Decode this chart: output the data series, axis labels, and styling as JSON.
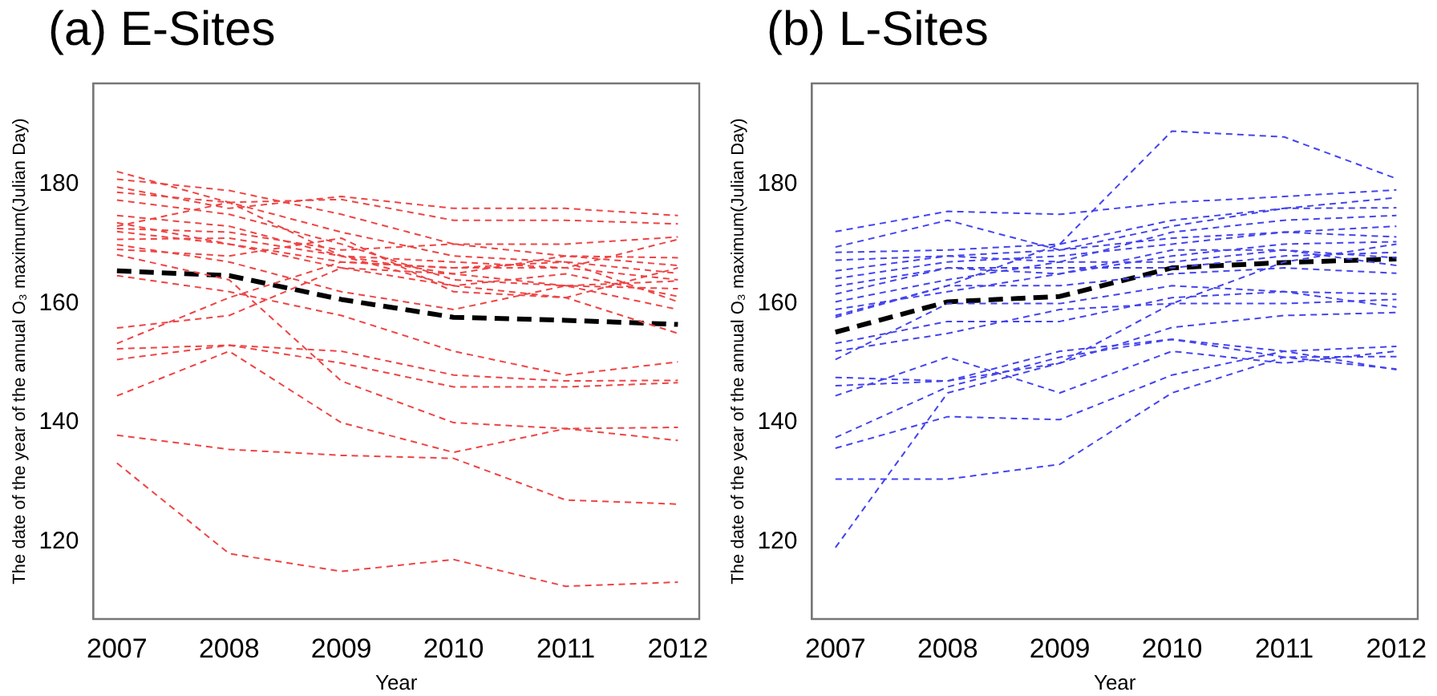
{
  "chart_data": [
    {
      "type": "line",
      "title": "(a) E-Sites",
      "xlabel": "Year",
      "ylabel": "The date of the year of the annual O₃ maximum(Julian Day)",
      "x": [
        2007,
        2008,
        2009,
        2010,
        2011,
        2012
      ],
      "xlim": [
        2006.79,
        2012.19
      ],
      "xticks": [
        2007,
        2008,
        2009,
        2010,
        2011,
        2012
      ],
      "ylim": [
        107,
        197
      ],
      "yticks": [
        120,
        140,
        160,
        180
      ],
      "grid": false,
      "legend": false,
      "marker": "none",
      "line_style": "dashed",
      "series": [
        {
          "color": "#ee4444",
          "values": [
            182.2,
            177,
            172,
            168,
            167,
            165.1
          ]
        },
        {
          "color": "#ee4444",
          "values": [
            180.9,
            179,
            175,
            170,
            168,
            166.4
          ]
        },
        {
          "color": "#ee4444",
          "values": [
            179.6,
            176,
            178,
            176,
            176,
            174.8
          ]
        },
        {
          "color": "#ee4444",
          "values": [
            178.7,
            177,
            177.5,
            174,
            174,
            173.4
          ]
        },
        {
          "color": "#ee4444",
          "values": [
            177.4,
            175,
            170,
            164,
            163,
            163.8
          ]
        },
        {
          "color": "#ee4444",
          "values": [
            174.8,
            173,
            168,
            167,
            166,
            170.8
          ]
        },
        {
          "color": "#ee4444",
          "values": [
            173.6,
            170,
            166,
            165,
            163,
            162.5
          ]
        },
        {
          "color": "#ee4444",
          "values": [
            173,
            177,
            168,
            165,
            168,
            167.7
          ]
        },
        {
          "color": "#ee4444",
          "values": [
            172.6,
            172,
            169,
            170,
            170,
            171.2
          ]
        },
        {
          "color": "#ee4444",
          "values": [
            172.1,
            170,
            167,
            166,
            167,
            160.3
          ]
        },
        {
          "color": "#ee4444",
          "values": [
            170.8,
            171,
            168,
            163,
            165,
            161.2
          ]
        },
        {
          "color": "#ee4444",
          "values": [
            169.9,
            167,
            162,
            159,
            163,
            159
          ]
        },
        {
          "color": "#ee4444",
          "values": [
            169.1,
            168,
            171,
            162,
            161,
            155
          ]
        },
        {
          "color": "#ee4444",
          "values": [
            168.2,
            164,
            147,
            140,
            139,
            139.2
          ]
        },
        {
          "color": "#ee4444",
          "values": [
            164.7,
            162,
            158,
            152,
            148,
            150.2
          ]
        },
        {
          "color": "#ee4444",
          "values": [
            155.9,
            158,
            166,
            163,
            161,
            166
          ]
        },
        {
          "color": "#ee4444",
          "values": [
            153.3,
            161,
            167,
            166,
            166,
            164
          ]
        },
        {
          "color": "#ee4444",
          "values": [
            152.4,
            153,
            152,
            148,
            147,
            147.1
          ]
        },
        {
          "color": "#ee4444",
          "values": [
            150.6,
            153,
            150,
            146,
            146,
            146.7
          ]
        },
        {
          "color": "#ee4444",
          "values": [
            144.5,
            152,
            140,
            135,
            139,
            137
          ]
        },
        {
          "color": "#ee4444",
          "values": [
            137.9,
            135.5,
            134.5,
            134,
            127,
            126.3
          ]
        },
        {
          "color": "#ee4444",
          "values": [
            133.2,
            118,
            115,
            117,
            112.5,
            113.2
          ]
        },
        {
          "color": "#000000",
          "values": [
            165.5,
            164.7,
            160.7,
            157.7,
            157.2,
            156.5
          ]
        }
      ]
    },
    {
      "type": "line",
      "title": "(b) L-Sites",
      "xlabel": "Year",
      "ylabel": "The date of the year of the annual O₃ maximum(Julian Day)",
      "x": [
        2007,
        2008,
        2009,
        2010,
        2011,
        2012
      ],
      "xlim": [
        2006.79,
        2012.19
      ],
      "xticks": [
        2007,
        2008,
        2009,
        2010,
        2011,
        2012
      ],
      "ylim": [
        107,
        197
      ],
      "yticks": [
        120,
        140,
        160,
        180
      ],
      "grid": false,
      "legend": false,
      "marker": "none",
      "line_style": "dashed",
      "series": [
        {
          "color": "#4444ee",
          "values": [
            158,
            163,
            170,
            189,
            188,
            181
          ]
        },
        {
          "color": "#4444ee",
          "values": [
            172.1,
            175.5,
            175,
            177,
            178,
            179.1
          ]
        },
        {
          "color": "#4444ee",
          "values": [
            169.5,
            174,
            169,
            173,
            176,
            177.8
          ]
        },
        {
          "color": "#4444ee",
          "values": [
            168.6,
            169,
            170,
            174,
            176,
            176.1
          ]
        },
        {
          "color": "#4444ee",
          "values": [
            167.3,
            168,
            167,
            172,
            174,
            174.8
          ]
        },
        {
          "color": "#4444ee",
          "values": [
            165.5,
            168,
            169,
            171,
            172,
            173
          ]
        },
        {
          "color": "#4444ee",
          "values": [
            164.2,
            167,
            168,
            170,
            172,
            171.2
          ]
        },
        {
          "color": "#4444ee",
          "values": [
            162.9,
            166,
            165,
            168,
            170,
            170.4
          ]
        },
        {
          "color": "#4444ee",
          "values": [
            161.6,
            166,
            166,
            166,
            168,
            168.6
          ]
        },
        {
          "color": "#4444ee",
          "values": [
            160.3,
            164,
            167,
            167,
            169,
            167.7
          ]
        },
        {
          "color": "#4444ee",
          "values": [
            159,
            162,
            165,
            169,
            169,
            166.4
          ]
        },
        {
          "color": "#4444ee",
          "values": [
            157.7,
            163,
            163,
            165,
            166,
            165.1
          ]
        },
        {
          "color": "#4444ee",
          "values": [
            153.3,
            157,
            157,
            161,
            162,
            161.6
          ]
        },
        {
          "color": "#4444ee",
          "values": [
            152,
            155,
            159,
            160,
            160,
            160.7
          ]
        },
        {
          "color": "#4444ee",
          "values": [
            150.6,
            160,
            160,
            163,
            162,
            159.4
          ]
        },
        {
          "color": "#4444ee",
          "values": [
            147.6,
            147,
            150,
            156,
            158,
            158.5
          ]
        },
        {
          "color": "#4444ee",
          "values": [
            146.2,
            147,
            152,
            154,
            152,
            152.8
          ]
        },
        {
          "color": "#4444ee",
          "values": [
            144.5,
            151,
            145,
            152,
            150,
            152
          ]
        },
        {
          "color": "#4444ee",
          "values": [
            137.5,
            146,
            151,
            154,
            151,
            151.1
          ]
        },
        {
          "color": "#4444ee",
          "values": [
            119,
            145,
            150,
            160,
            167,
            170
          ]
        },
        {
          "color": "#4444ee",
          "values": [
            130.5,
            130.5,
            133,
            145,
            151,
            149
          ]
        },
        {
          "color": "#4444ee",
          "values": [
            135.7,
            141,
            140.5,
            148,
            152,
            148.9
          ]
        },
        {
          "color": "#000000",
          "values": [
            155.2,
            160.3,
            161.2,
            166,
            166.9,
            167.5
          ]
        }
      ]
    }
  ]
}
